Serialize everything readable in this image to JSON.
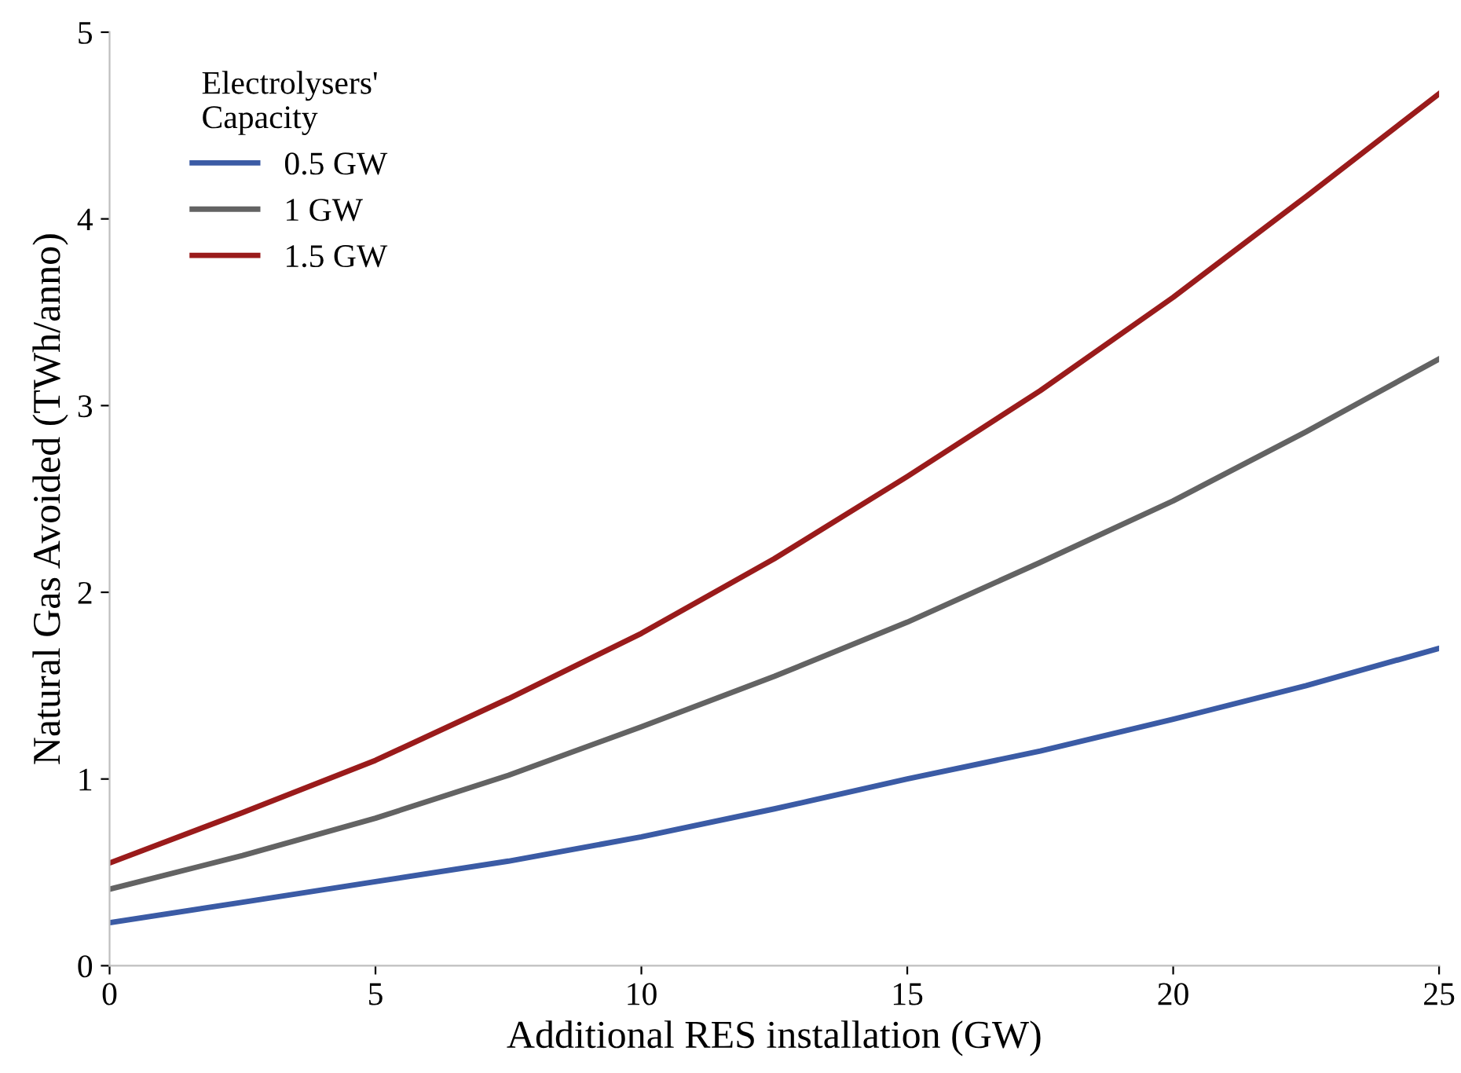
{
  "chart_data": {
    "type": "line",
    "xlabel": "Additional RES installation (GW)",
    "ylabel": "Natural Gas Avoided (TWh/anno)",
    "legend_title": "Electrolysers'\nCapacity",
    "legend": "top left",
    "grid": false,
    "marker": "none",
    "line_style": "solid",
    "x": [
      0,
      2.5,
      5,
      7.5,
      10,
      12.5,
      15,
      17.5,
      20,
      22.5,
      25
    ],
    "xlim": [
      0,
      25
    ],
    "xticks": [
      0,
      5,
      10,
      15,
      20,
      25
    ],
    "ylim": [
      0,
      5
    ],
    "yticks": [
      0,
      1,
      2,
      3,
      4,
      5
    ],
    "series": [
      {
        "name": "0.5 GW",
        "color": "#3b5ba5",
        "values": [
          0.23,
          0.34,
          0.45,
          0.56,
          0.69,
          0.84,
          1.0,
          1.15,
          1.32,
          1.5,
          1.7
        ]
      },
      {
        "name": "1 GW",
        "color": "#636363",
        "values": [
          0.41,
          0.59,
          0.79,
          1.02,
          1.28,
          1.55,
          1.84,
          2.16,
          2.49,
          2.86,
          3.25
        ]
      },
      {
        "name": "1.5 GW",
        "color": "#9a1b1b",
        "values": [
          0.55,
          0.82,
          1.1,
          1.43,
          1.78,
          2.18,
          2.62,
          3.08,
          3.58,
          4.12,
          4.67
        ]
      }
    ]
  }
}
